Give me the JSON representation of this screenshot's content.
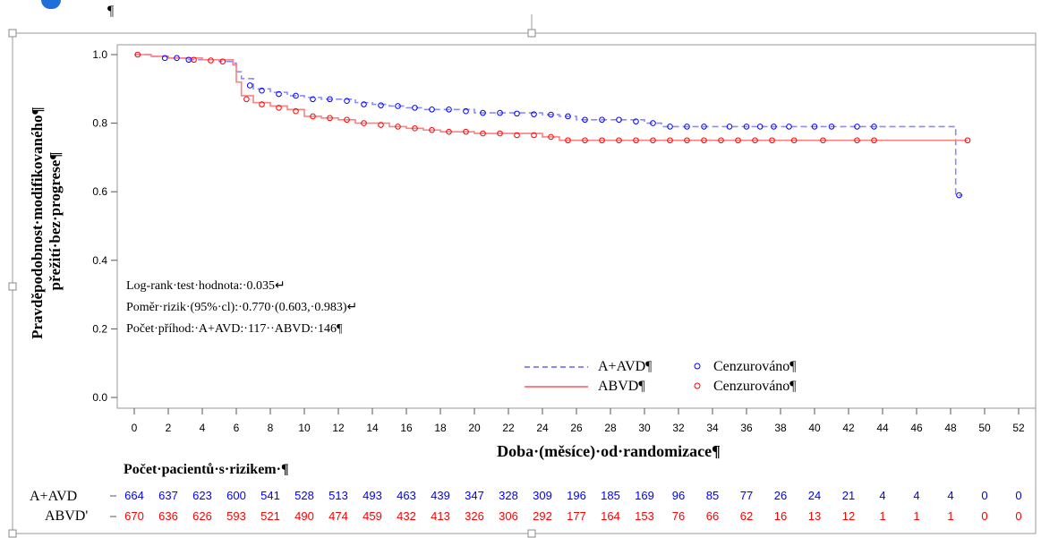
{
  "document": {
    "top_mark": "¶"
  },
  "chart_data": {
    "type": "line",
    "title": "",
    "xlabel": "Doba·(měsíce)·od·randomizace¶",
    "ylabel_line1": "Pravděpodobnost·modifikovaného¶",
    "ylabel_line2": "přežití·bez·progrese¶",
    "xlim": [
      0,
      52
    ],
    "ylim": [
      0,
      1.0
    ],
    "xticks": [
      0,
      2,
      4,
      6,
      8,
      10,
      12,
      14,
      16,
      18,
      20,
      22,
      24,
      26,
      28,
      30,
      32,
      34,
      36,
      38,
      40,
      42,
      44,
      46,
      48,
      50,
      52
    ],
    "yticks": [
      "0.0",
      "0.2",
      "0.4",
      "0.6",
      "0.8",
      "1.0"
    ],
    "grid": false,
    "legend_position": "bottom-right",
    "colors": {
      "avd": "#0000ff",
      "abvd": "#ff0000",
      "avd_line": "#8a8aff",
      "abvd_line": "#ff8080"
    },
    "series": [
      {
        "name": "A+AVD¶",
        "censored_label": "Cenzurováno¶",
        "style": "dashed",
        "steps": [
          [
            0,
            1.0
          ],
          [
            1,
            0.995
          ],
          [
            2,
            0.99
          ],
          [
            3,
            0.985
          ],
          [
            5,
            0.98
          ],
          [
            5.8,
            0.975
          ],
          [
            6,
            0.95
          ],
          [
            6.3,
            0.93
          ],
          [
            7,
            0.9
          ],
          [
            8,
            0.89
          ],
          [
            9,
            0.88
          ],
          [
            10,
            0.875
          ],
          [
            11,
            0.87
          ],
          [
            13,
            0.86
          ],
          [
            14,
            0.855
          ],
          [
            15,
            0.85
          ],
          [
            16,
            0.845
          ],
          [
            17,
            0.84
          ],
          [
            20,
            0.83
          ],
          [
            24,
            0.825
          ],
          [
            25,
            0.82
          ],
          [
            26,
            0.81
          ],
          [
            30,
            0.8
          ],
          [
            31,
            0.79
          ],
          [
            48.3,
            0.79
          ],
          [
            48.3,
            0.59
          ],
          [
            48.7,
            0.59
          ]
        ],
        "censored": [
          [
            1.8,
            0.99
          ],
          [
            2.5,
            0.99
          ],
          [
            3.2,
            0.985
          ],
          [
            6.8,
            0.91
          ],
          [
            7.5,
            0.895
          ],
          [
            8.5,
            0.885
          ],
          [
            9.5,
            0.88
          ],
          [
            10.5,
            0.87
          ],
          [
            11.5,
            0.87
          ],
          [
            12.5,
            0.865
          ],
          [
            13.5,
            0.855
          ],
          [
            14.5,
            0.852
          ],
          [
            15.5,
            0.85
          ],
          [
            16.5,
            0.845
          ],
          [
            17.5,
            0.84
          ],
          [
            18.5,
            0.84
          ],
          [
            19.5,
            0.835
          ],
          [
            20.5,
            0.83
          ],
          [
            21.5,
            0.83
          ],
          [
            22.5,
            0.828
          ],
          [
            23.5,
            0.826
          ],
          [
            24.5,
            0.825
          ],
          [
            25.5,
            0.82
          ],
          [
            26.5,
            0.81
          ],
          [
            27.5,
            0.81
          ],
          [
            28.5,
            0.81
          ],
          [
            29.5,
            0.805
          ],
          [
            30.5,
            0.8
          ],
          [
            31.5,
            0.79
          ],
          [
            32.5,
            0.79
          ],
          [
            33.5,
            0.79
          ],
          [
            35,
            0.79
          ],
          [
            36,
            0.79
          ],
          [
            36.8,
            0.79
          ],
          [
            37.6,
            0.79
          ],
          [
            38.5,
            0.79
          ],
          [
            40,
            0.79
          ],
          [
            41,
            0.79
          ],
          [
            42.5,
            0.79
          ],
          [
            43.5,
            0.79
          ],
          [
            48.5,
            0.59
          ]
        ]
      },
      {
        "name": "ABVD¶",
        "censored_label": "Cenzurováno¶",
        "style": "solid",
        "steps": [
          [
            0,
            1.0
          ],
          [
            1,
            0.995
          ],
          [
            2,
            0.99
          ],
          [
            4,
            0.985
          ],
          [
            5.8,
            0.97
          ],
          [
            6,
            0.92
          ],
          [
            6.3,
            0.88
          ],
          [
            7,
            0.86
          ],
          [
            8,
            0.85
          ],
          [
            9,
            0.84
          ],
          [
            10,
            0.82
          ],
          [
            11,
            0.815
          ],
          [
            12,
            0.81
          ],
          [
            13,
            0.8
          ],
          [
            15,
            0.79
          ],
          [
            16,
            0.785
          ],
          [
            17,
            0.78
          ],
          [
            18,
            0.775
          ],
          [
            20,
            0.77
          ],
          [
            24,
            0.76
          ],
          [
            25,
            0.75
          ],
          [
            49,
            0.75
          ]
        ],
        "censored": [
          [
            0.2,
            1.0
          ],
          [
            3.5,
            0.985
          ],
          [
            4.5,
            0.983
          ],
          [
            5.2,
            0.98
          ],
          [
            6.6,
            0.87
          ],
          [
            7.5,
            0.855
          ],
          [
            8.5,
            0.845
          ],
          [
            9.5,
            0.835
          ],
          [
            10.5,
            0.82
          ],
          [
            11.5,
            0.815
          ],
          [
            12.5,
            0.81
          ],
          [
            13.5,
            0.8
          ],
          [
            14.5,
            0.795
          ],
          [
            15.5,
            0.79
          ],
          [
            16.5,
            0.785
          ],
          [
            17.5,
            0.78
          ],
          [
            18.5,
            0.775
          ],
          [
            19.5,
            0.775
          ],
          [
            20.5,
            0.77
          ],
          [
            21.5,
            0.77
          ],
          [
            22.5,
            0.765
          ],
          [
            23.5,
            0.765
          ],
          [
            24.5,
            0.76
          ],
          [
            25.5,
            0.75
          ],
          [
            26.5,
            0.75
          ],
          [
            27.5,
            0.75
          ],
          [
            28.5,
            0.75
          ],
          [
            29.5,
            0.75
          ],
          [
            30.5,
            0.75
          ],
          [
            31.5,
            0.75
          ],
          [
            32.5,
            0.75
          ],
          [
            33.5,
            0.75
          ],
          [
            34.5,
            0.75
          ],
          [
            35.5,
            0.75
          ],
          [
            36.5,
            0.75
          ],
          [
            37.5,
            0.75
          ],
          [
            38.8,
            0.75
          ],
          [
            40.5,
            0.75
          ],
          [
            42.5,
            0.75
          ],
          [
            43.5,
            0.75
          ],
          [
            49,
            0.75
          ]
        ]
      }
    ],
    "annotations": [
      "Log-rank·test·hodnota:·0.035↵",
      "Poměr·rizik·(95%·cl):·0.770·(0.603,·0.983)↵",
      "Počet·příhod:·A+AVD:·117··ABVD:·146¶"
    ],
    "risk_table": {
      "title": "Počet·pacientů·s·rizikem·¶",
      "rows": [
        {
          "label": "A+AVD",
          "color": "#0000ff",
          "values": [
            "664",
            "637",
            "623",
            "600",
            "541",
            "528",
            "513",
            "493",
            "463",
            "439",
            "347",
            "328",
            "309",
            "196",
            "185",
            "169",
            "96",
            "85",
            "77",
            "26",
            "24",
            "21",
            "4",
            "4",
            "4",
            "0",
            "0"
          ]
        },
        {
          "label": "ABVD'",
          "color": "#ff0000",
          "values": [
            "670",
            "636",
            "626",
            "593",
            "521",
            "490",
            "474",
            "459",
            "432",
            "413",
            "326",
            "306",
            "292",
            "177",
            "164",
            "153",
            "76",
            "66",
            "62",
            "16",
            "13",
            "12",
            "1",
            "1",
            "1",
            "0",
            "0"
          ]
        }
      ]
    }
  }
}
